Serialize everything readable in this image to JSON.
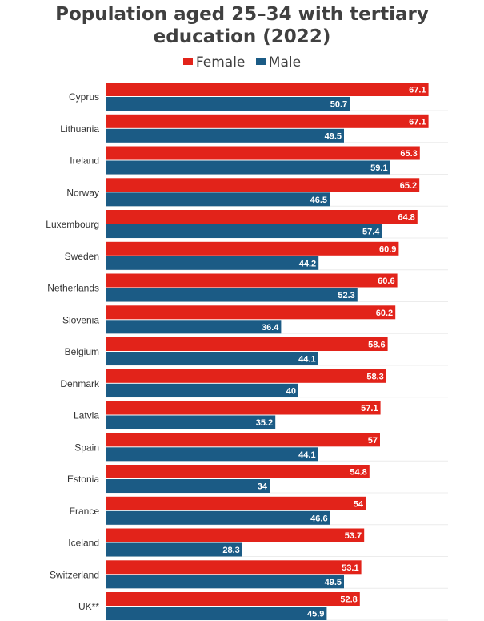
{
  "title_line1": "Population aged 25–34 with tertiary",
  "title_line2": "education (2022)",
  "colors": {
    "female": "#e2231a",
    "male": "#1b5b85",
    "grid": "#ececec"
  },
  "chart_data": {
    "type": "bar",
    "orientation": "horizontal",
    "title": "Population aged 25–34 with tertiary education (2022)",
    "legend_position": "top-center",
    "grid": true,
    "xlim": [
      0,
      72
    ],
    "categories": [
      "Cyprus",
      "Lithuania",
      "Ireland",
      "Norway",
      "Luxembourg",
      "Sweden",
      "Netherlands",
      "Slovenia",
      "Belgium",
      "Denmark",
      "Latvia",
      "Spain",
      "Estonia",
      "France",
      "Iceland",
      "Switzerland",
      "UK**"
    ],
    "series": [
      {
        "name": "Female",
        "values": [
          67.1,
          67.1,
          65.3,
          65.2,
          64.8,
          60.9,
          60.6,
          60.2,
          58.6,
          58.3,
          57.1,
          57,
          54.8,
          54,
          53.7,
          53.1,
          52.8
        ],
        "labels": [
          "67.1",
          "67.1",
          "65.3",
          "65.2",
          "64.8",
          "60.9",
          "60.6",
          "60.2",
          "58.6",
          "58.3",
          "57.1",
          "57",
          "54.8",
          "54",
          "53.7",
          "53.1",
          "52.8"
        ]
      },
      {
        "name": "Male",
        "values": [
          50.7,
          49.5,
          59.1,
          46.5,
          57.4,
          44.2,
          52.3,
          36.4,
          44.1,
          40,
          35.2,
          44.1,
          34,
          46.6,
          28.3,
          49.5,
          45.9
        ],
        "labels": [
          "50.7",
          "49.5",
          "59.1",
          "46.5",
          "57.4",
          "44.2",
          "52.3",
          "36.4",
          "44.1",
          "40",
          "35.2",
          "44.1",
          "34",
          "46.6",
          "28.3",
          "49.5",
          "45.9"
        ]
      }
    ]
  }
}
